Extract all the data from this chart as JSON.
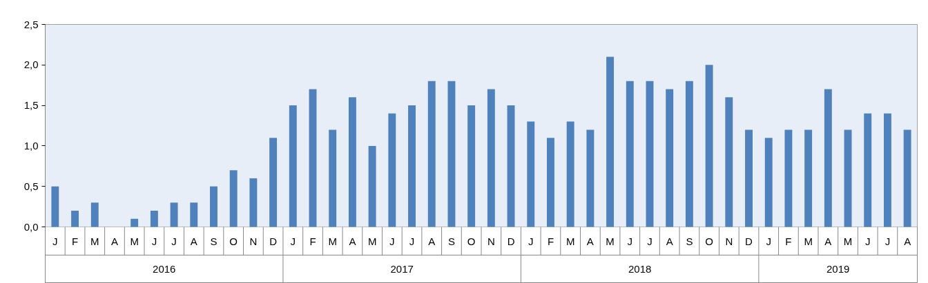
{
  "chart_data": {
    "type": "bar",
    "categories": [
      "J",
      "F",
      "M",
      "A",
      "M",
      "J",
      "J",
      "A",
      "S",
      "O",
      "N",
      "D",
      "J",
      "F",
      "M",
      "A",
      "M",
      "J",
      "J",
      "A",
      "S",
      "O",
      "N",
      "D",
      "J",
      "F",
      "M",
      "A",
      "M",
      "J",
      "J",
      "A",
      "S",
      "O",
      "N",
      "D",
      "J",
      "F",
      "M",
      "A",
      "M",
      "J",
      "J",
      "A"
    ],
    "values": [
      0.5,
      0.2,
      0.3,
      0,
      0.1,
      0.2,
      0.3,
      0.3,
      0.5,
      0.7,
      0.6,
      1.1,
      1.5,
      1.7,
      1.2,
      1.6,
      1.0,
      1.4,
      1.5,
      1.8,
      1.8,
      1.5,
      1.7,
      1.5,
      1.3,
      1.1,
      1.3,
      1.2,
      2.1,
      1.8,
      1.8,
      1.7,
      1.8,
      2.0,
      1.6,
      1.2,
      1.1,
      1.2,
      1.2,
      1.7,
      1.2,
      1.4,
      1.4,
      1.2
    ],
    "color": "#4f81bd",
    "annotations": [
      "2016",
      "2017",
      "2018",
      "2019"
    ],
    "ylim": [
      0,
      2.5
    ],
    "yticks": [
      {
        "value": 0,
        "label": "0,0"
      },
      {
        "value": 0.5,
        "label": "0,5"
      },
      {
        "value": 1.0,
        "label": "1,0"
      },
      {
        "value": 1.5,
        "label": "1,5"
      },
      {
        "value": 2.0,
        "label": "2,0"
      },
      {
        "value": 2.5,
        "label": "2,5"
      }
    ],
    "grid": "y"
  }
}
